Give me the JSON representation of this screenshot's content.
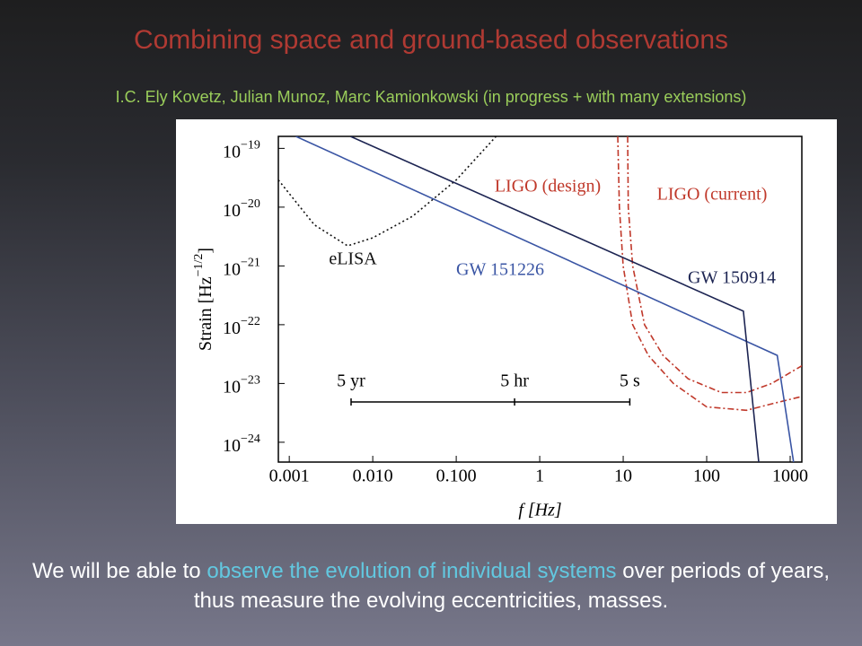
{
  "slide": {
    "title": "Combining space and ground-based observations",
    "subtitle": "I.C. Ely Kovetz, Julian Munoz, Marc Kamionkowski (in progress + with many extensions)",
    "footer": [
      "We will be able to ",
      "observe the evolution of individual systems",
      " over periods of years, thus measure the evolving eccentricities, masses."
    ]
  },
  "chart_data": {
    "type": "line",
    "xscale": "log",
    "yscale": "log",
    "xlabel": "f [Hz]",
    "ylabel": "Strain [Hz−1/2]",
    "xlim": [
      0.00074,
      1380
    ],
    "ylim": [
      4.6e-25,
      1.6e-19
    ],
    "xticks": [
      0.001,
      {
        "value": 0.01,
        "label": "0.010"
      },
      {
        "value": 0.1,
        "label": "0.100"
      },
      1,
      10,
      100,
      1000
    ],
    "yticks": [
      {
        "value": 1e-19,
        "label": "10−19"
      },
      {
        "value": 1e-20,
        "label": "10−20"
      },
      {
        "value": 1e-21,
        "label": "10−21"
      },
      {
        "value": 1e-22,
        "label": "10−22"
      },
      {
        "value": 1e-23,
        "label": "10−23"
      },
      {
        "value": 1e-24,
        "label": "10−24"
      }
    ],
    "series": [
      {
        "name": "eLISA",
        "color": "#111111",
        "line_style": "dotted",
        "x": [
          0.00074,
          0.002,
          0.005,
          0.01,
          0.03,
          0.1,
          0.3
        ],
        "values": [
          2.9e-20,
          5e-21,
          2.2e-21,
          3e-21,
          7e-21,
          2.9e-20,
          1.6e-19
        ]
      },
      {
        "name": "LIGO (design)",
        "color": "#c0392b",
        "line_style": "dashdot",
        "x": [
          8.6,
          9,
          10,
          13,
          20,
          40,
          100,
          300,
          600,
          1380
        ],
        "values": [
          1.6e-19,
          1e-20,
          1e-21,
          1e-22,
          3e-23,
          1e-23,
          4e-24,
          3.5e-24,
          4.5e-24,
          6e-24
        ]
      },
      {
        "name": "LIGO (current)",
        "color": "#c0392b",
        "line_style": "dashdot",
        "x": [
          11.3,
          11.5,
          13,
          18,
          30,
          60,
          150,
          300,
          600,
          1380
        ],
        "values": [
          1.6e-19,
          1e-20,
          1e-21,
          1e-22,
          3e-23,
          1.2e-23,
          7e-24,
          7e-24,
          1e-23,
          2e-23
        ]
      },
      {
        "name": "GW 151226",
        "color": "#3a55a4",
        "line_style": "solid",
        "x": [
          0.0012,
          700,
          1100
        ],
        "values": [
          1.6e-19,
          3e-23,
          4.6e-25
        ]
      },
      {
        "name": "GW 150914",
        "color": "#1c2452",
        "line_style": "solid",
        "x": [
          0.0054,
          275,
          420
        ],
        "values": [
          1.6e-19,
          1.7e-22,
          4.6e-25
        ]
      }
    ],
    "timescale_bar": {
      "labels": [
        "5 yr",
        "5 hr",
        "5 s"
      ],
      "x": [
        0.0055,
        0.5,
        12
      ]
    }
  }
}
